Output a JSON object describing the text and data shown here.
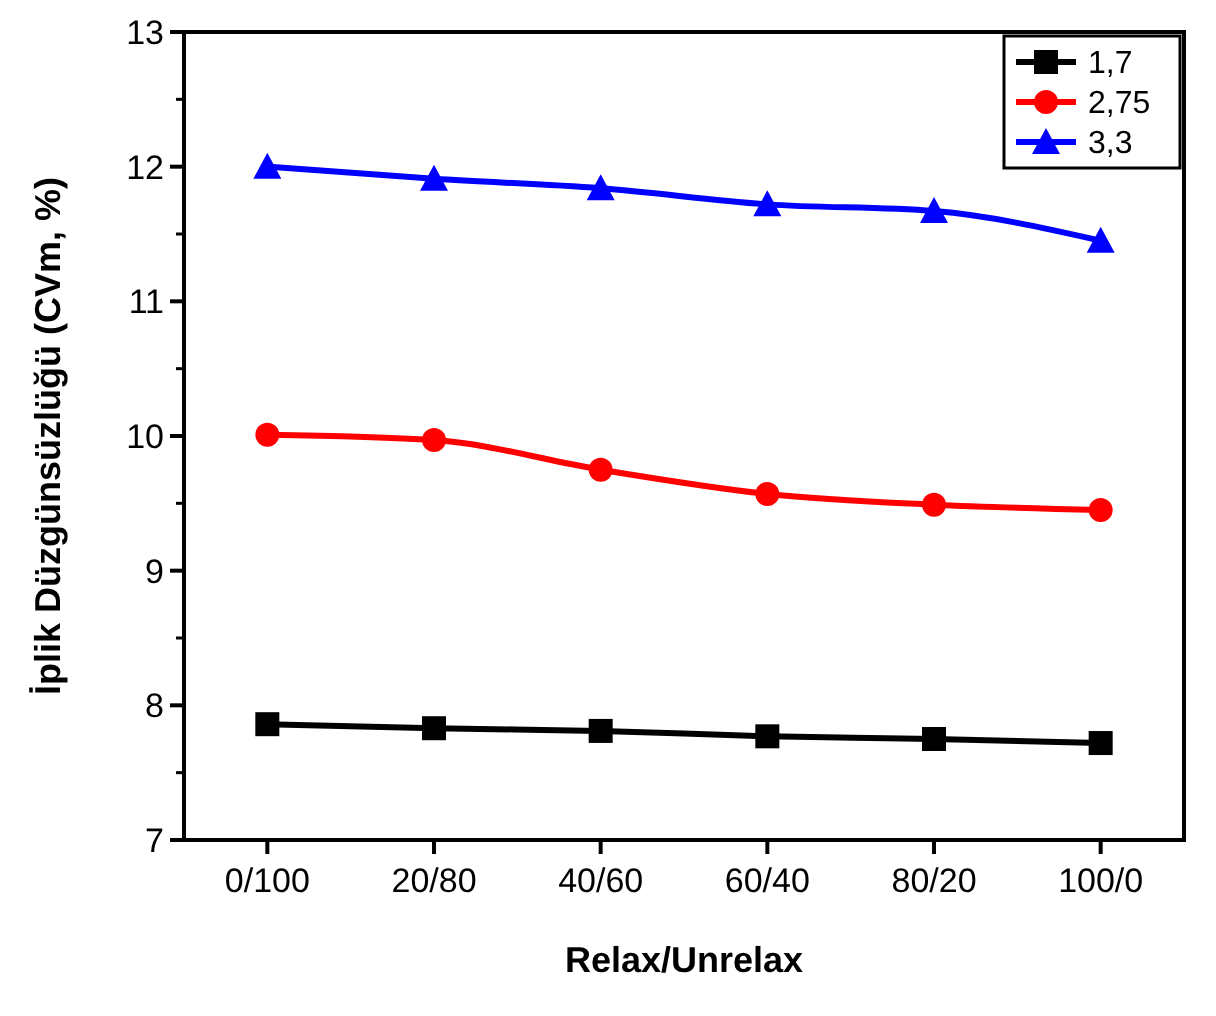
{
  "chart_data": {
    "type": "line",
    "xlabel": "Relax/Unrelax",
    "ylabel": "İplik Düzgünsüzlüğü (CVm, %)",
    "categories": [
      "0/100",
      "20/80",
      "40/60",
      "60/40",
      "80/20",
      "100/0"
    ],
    "ylim": [
      7,
      13
    ],
    "yticks": [
      7,
      8,
      9,
      10,
      11,
      12,
      13
    ],
    "grid": false,
    "legend": "top right",
    "line_style": "solid",
    "series": [
      {
        "name": "1,7",
        "color": "#000000",
        "marker": "square",
        "values": [
          7.86,
          7.83,
          7.81,
          7.77,
          7.75,
          7.72
        ]
      },
      {
        "name": "2,75",
        "color": "#ff0000",
        "marker": "circle",
        "values": [
          10.01,
          9.97,
          9.75,
          9.57,
          9.49,
          9.45
        ]
      },
      {
        "name": "3,3",
        "color": "#0000ff",
        "marker": "triangle",
        "values": [
          12.0,
          11.91,
          11.84,
          11.72,
          11.67,
          11.45
        ]
      }
    ]
  }
}
